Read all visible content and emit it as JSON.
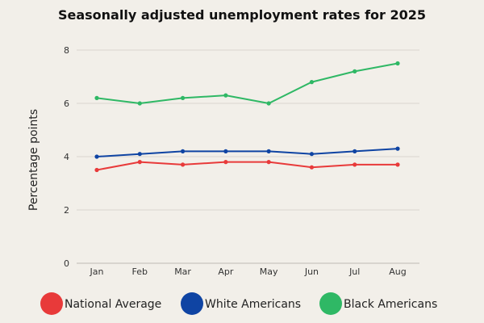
{
  "chart_data": {
    "type": "line",
    "title": "Seasonally adjusted unemployment rates for 2025",
    "xlabel": "",
    "ylabel": "Percentage points",
    "categories": [
      "Jan",
      "Feb",
      "Mar",
      "Apr",
      "May",
      "Jun",
      "Jul",
      "Aug"
    ],
    "ylim": [
      0,
      8
    ],
    "yticks": [
      0,
      2,
      4,
      6,
      8
    ],
    "grid": true,
    "legend_position": "bottom",
    "series": [
      {
        "name": "National Average",
        "color": "#e83a3a",
        "values": [
          3.5,
          3.8,
          3.7,
          3.8,
          3.8,
          3.6,
          3.7,
          3.7
        ]
      },
      {
        "name": "White Americans",
        "color": "#0f44a3",
        "values": [
          4.0,
          4.1,
          4.2,
          4.2,
          4.2,
          4.1,
          4.2,
          4.3
        ]
      },
      {
        "name": "Black Americans",
        "color": "#2fb865",
        "values": [
          6.2,
          6.0,
          6.2,
          6.3,
          6.0,
          6.8,
          7.2,
          7.5
        ]
      }
    ]
  }
}
